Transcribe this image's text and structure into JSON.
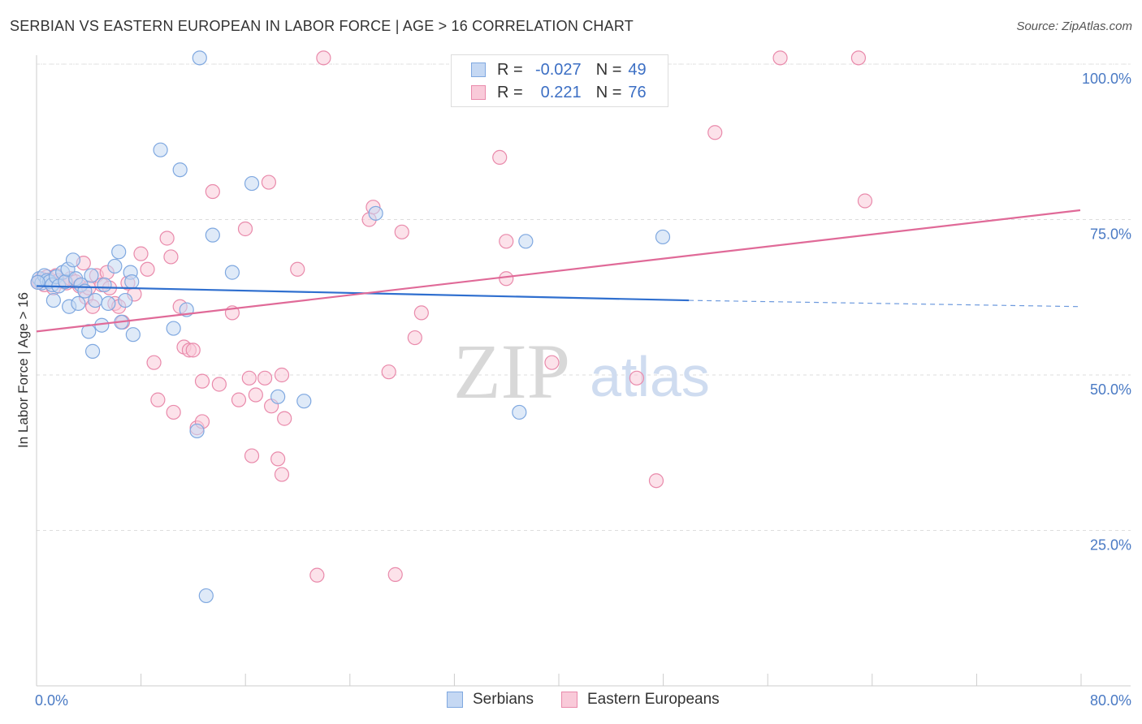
{
  "title": "SERBIAN VS EASTERN EUROPEAN IN LABOR FORCE | AGE > 16 CORRELATION CHART",
  "source": "Source: ZipAtlas.com",
  "watermark": {
    "zip": "ZIP",
    "atlas": "atlas"
  },
  "legend": {
    "rows": [
      {
        "r_label": "R =",
        "r_value": "-0.027",
        "n_label": "N =",
        "n_value": "49",
        "color": "#7fa8e0",
        "fill": "#c5d8f3"
      },
      {
        "r_label": "R =",
        "r_value": "0.221",
        "n_label": "N =",
        "n_value": "76",
        "color": "#e98aab",
        "fill": "#f9cad9"
      }
    ]
  },
  "bottom_legend": {
    "series1": "Serbians",
    "series2": "Eastern Europeans"
  },
  "chart_data": {
    "type": "scatter",
    "title": "SERBIAN VS EASTERN EUROPEAN IN LABOR FORCE | AGE > 16 CORRELATION CHART",
    "xlabel": "",
    "ylabel": "In Labor Force | Age > 16",
    "xlim": [
      0,
      80
    ],
    "ylim": [
      0,
      100
    ],
    "x_tick_labels": [
      "0.0%",
      "80.0%"
    ],
    "y_ticks": [
      25,
      50,
      75,
      100
    ],
    "y_tick_labels": [
      "25.0%",
      "50.0%",
      "75.0%",
      "100.0%"
    ],
    "series": [
      {
        "name": "Serbians",
        "color": "#7fa8e0",
        "fill": "#c5d8f3",
        "trend": {
          "x0": 0,
          "y0": 64.3,
          "x1": 50,
          "y1": 62.0,
          "dashed_to_x": 80,
          "dashed_to_y": 61.0,
          "color": "#2f6fcf"
        },
        "points": [
          [
            0.2,
            65.5
          ],
          [
            0.4,
            64.8
          ],
          [
            0.6,
            66.0
          ],
          [
            0.8,
            65.2
          ],
          [
            1.0,
            65.0
          ],
          [
            1.2,
            64.5
          ],
          [
            1.3,
            62.0
          ],
          [
            1.5,
            65.8
          ],
          [
            1.7,
            64.3
          ],
          [
            2.0,
            66.5
          ],
          [
            2.2,
            65.0
          ],
          [
            2.4,
            67.0
          ],
          [
            2.5,
            61.0
          ],
          [
            2.8,
            68.5
          ],
          [
            3.0,
            65.5
          ],
          [
            3.2,
            61.5
          ],
          [
            3.4,
            64.5
          ],
          [
            3.7,
            63.5
          ],
          [
            4.0,
            57.0
          ],
          [
            4.2,
            66.0
          ],
          [
            4.3,
            53.8
          ],
          [
            4.5,
            62.0
          ],
          [
            5.0,
            58.0
          ],
          [
            5.2,
            64.5
          ],
          [
            5.5,
            61.5
          ],
          [
            6.0,
            67.5
          ],
          [
            6.3,
            69.8
          ],
          [
            6.5,
            58.5
          ],
          [
            6.8,
            62.0
          ],
          [
            7.2,
            66.5
          ],
          [
            7.3,
            65.0
          ],
          [
            7.4,
            56.5
          ],
          [
            9.5,
            86.2
          ],
          [
            10.5,
            57.5
          ],
          [
            11.0,
            83.0
          ],
          [
            11.5,
            60.5
          ],
          [
            12.3,
            41.0
          ],
          [
            12.5,
            101.0
          ],
          [
            13.0,
            14.5
          ],
          [
            13.5,
            72.5
          ],
          [
            15.0,
            66.5
          ],
          [
            16.5,
            80.8
          ],
          [
            18.5,
            46.5
          ],
          [
            20.5,
            45.8
          ],
          [
            26.0,
            76.0
          ],
          [
            37.0,
            44.0
          ],
          [
            37.5,
            71.5
          ],
          [
            48.0,
            72.2
          ],
          [
            0.1,
            64.9
          ]
        ]
      },
      {
        "name": "Eastern Europeans",
        "color": "#e98aab",
        "fill": "#f9cad9",
        "trend": {
          "x0": 0,
          "y0": 57.0,
          "x1": 80,
          "y1": 76.5,
          "color": "#e06a98"
        },
        "points": [
          [
            0.2,
            65.0
          ],
          [
            0.4,
            65.5
          ],
          [
            0.6,
            64.5
          ],
          [
            0.8,
            65.8
          ],
          [
            1.0,
            65.3
          ],
          [
            1.3,
            64.0
          ],
          [
            1.5,
            66.0
          ],
          [
            1.7,
            65.2
          ],
          [
            2.0,
            65.0
          ],
          [
            2.3,
            64.8
          ],
          [
            2.6,
            65.5
          ],
          [
            3.0,
            65.0
          ],
          [
            3.3,
            64.3
          ],
          [
            3.6,
            68.0
          ],
          [
            3.8,
            62.5
          ],
          [
            4.0,
            64.0
          ],
          [
            4.3,
            61.0
          ],
          [
            4.6,
            66.0
          ],
          [
            5.0,
            64.5
          ],
          [
            5.4,
            66.5
          ],
          [
            5.6,
            64.0
          ],
          [
            6.0,
            61.5
          ],
          [
            6.3,
            61.0
          ],
          [
            6.6,
            58.5
          ],
          [
            7.0,
            64.8
          ],
          [
            7.5,
            63.0
          ],
          [
            8.0,
            69.5
          ],
          [
            8.5,
            67.0
          ],
          [
            9.0,
            52.0
          ],
          [
            9.3,
            46.0
          ],
          [
            10.0,
            72.0
          ],
          [
            10.3,
            69.0
          ],
          [
            10.5,
            44.0
          ],
          [
            11.0,
            61.0
          ],
          [
            11.3,
            54.5
          ],
          [
            11.7,
            54.0
          ],
          [
            12.0,
            54.0
          ],
          [
            12.3,
            41.5
          ],
          [
            12.7,
            49.0
          ],
          [
            12.7,
            42.5
          ],
          [
            13.5,
            79.5
          ],
          [
            14.0,
            48.5
          ],
          [
            15.0,
            60.0
          ],
          [
            15.5,
            46.0
          ],
          [
            16.0,
            73.5
          ],
          [
            16.3,
            49.5
          ],
          [
            16.8,
            46.8
          ],
          [
            16.5,
            37.0
          ],
          [
            17.5,
            49.5
          ],
          [
            17.8,
            81.0
          ],
          [
            18.0,
            45.0
          ],
          [
            18.5,
            36.5
          ],
          [
            18.8,
            50.0
          ],
          [
            18.8,
            34.0
          ],
          [
            19.0,
            43.0
          ],
          [
            20.0,
            67.0
          ],
          [
            21.5,
            17.8
          ],
          [
            22.0,
            101.0
          ],
          [
            25.5,
            75.0
          ],
          [
            25.8,
            77.0
          ],
          [
            27.0,
            50.5
          ],
          [
            27.5,
            17.9
          ],
          [
            28.0,
            73.0
          ],
          [
            29.0,
            56.0
          ],
          [
            29.5,
            60.0
          ],
          [
            35.5,
            85.0
          ],
          [
            36.0,
            71.5
          ],
          [
            36.0,
            65.5
          ],
          [
            39.5,
            52.0
          ],
          [
            46.0,
            49.5
          ],
          [
            47.5,
            33.0
          ],
          [
            52.0,
            89.0
          ],
          [
            57.0,
            101.0
          ],
          [
            63.0,
            101.0
          ],
          [
            63.5,
            78.0
          ],
          [
            0.1,
            64.9
          ]
        ]
      }
    ]
  }
}
